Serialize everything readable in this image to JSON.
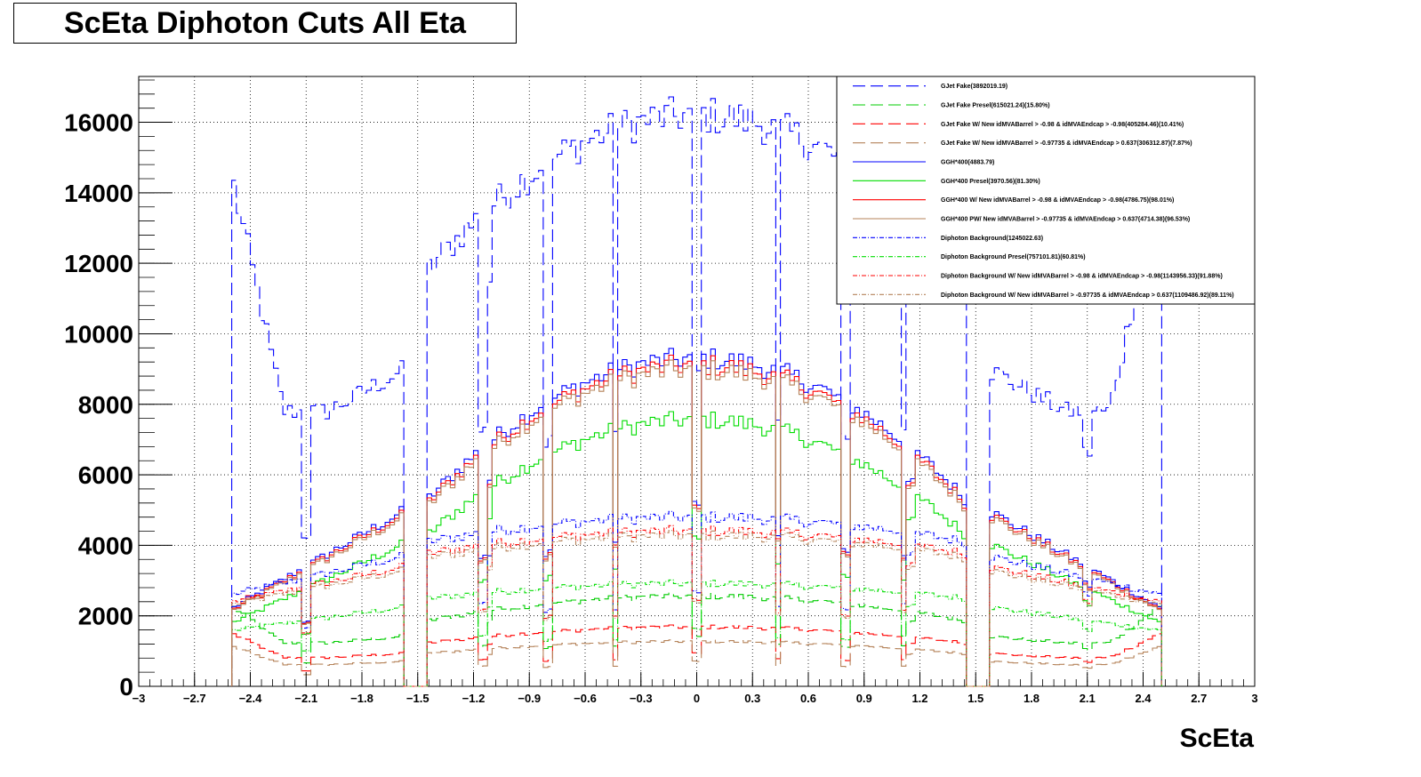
{
  "chart_data": {
    "type": "line",
    "title": "ScEta Diphoton Cuts All Eta",
    "xlabel": "ScEta",
    "ylabel": "",
    "xlim": [
      -3,
      3
    ],
    "ylim": [
      0,
      17300
    ],
    "grid": true,
    "legend_position": "top-right",
    "x_ticks": [
      "−3",
      "−2.7",
      "−2.4",
      "−2.1",
      "−1.8",
      "−1.5",
      "−1.2",
      "−0.9",
      "−0.6",
      "−0.3",
      "0",
      "0.3",
      "0.6",
      "0.9",
      "1.2",
      "1.5",
      "1.8",
      "2.1",
      "2.4",
      "2.7",
      "3"
    ],
    "y_ticks": [
      "0",
      "2000",
      "4000",
      "6000",
      "8000",
      "10000",
      "12000",
      "14000",
      "16000"
    ],
    "bin_width": 0.025,
    "eta_range": [
      -2.5,
      2.5
    ],
    "gap_range": [
      1.4442,
      1.566
    ],
    "dip_positions": [
      -2.1,
      -1.15,
      -0.8,
      -0.43,
      0,
      0.43,
      0.8,
      1.12
    ],
    "series": [
      {
        "name": "GJet Fake(3892019.19)",
        "color": "#0000ff",
        "dash": "long",
        "shape": "gjet",
        "scale": 1.0,
        "center": 16200,
        "edge": 11800,
        "endcap_start": 9000,
        "endcap_mid": 7800,
        "endcap_end": 14500
      },
      {
        "name": "GJet Fake Presel(615021.24)(15.80%)",
        "color": "#00cc00",
        "dash": "long",
        "shape": "gjet",
        "scale": 0.158,
        "center": 16200,
        "edge": 11800,
        "endcap_start": 9000,
        "endcap_mid": 7800,
        "endcap_end": 14500
      },
      {
        "name": "GJet Fake W/ New idMVABarrel > -0.98 & idMVAEndcap > -0.98(405284.46)(10.41%)",
        "color": "#ff0000",
        "dash": "long",
        "shape": "gjet",
        "scale": 0.104,
        "center": 16200,
        "edge": 11800,
        "endcap_start": 9000,
        "endcap_mid": 7800,
        "endcap_end": 14500
      },
      {
        "name": "GJet Fake W/ New idMVABarrel > -0.97735 & idMVAEndcap > 0.637(306312.87)(7.87%)",
        "color": "#b5835a",
        "dash": "long",
        "shape": "gjet",
        "scale": 0.0787,
        "center": 16200,
        "edge": 11800,
        "endcap_start": 9000,
        "endcap_mid": 7800,
        "endcap_end": 14500
      },
      {
        "name": "GGH*400(4883.79)",
        "color": "#0000ff",
        "dash": "solid",
        "shape": "ggh",
        "scale": 1.0,
        "center": 9300,
        "edge": 5300,
        "endcap_start": 5000,
        "endcap_end": 2200
      },
      {
        "name": "GGH*400 Presel(3970.56)(81.30%)",
        "color": "#00dd00",
        "dash": "solid",
        "shape": "ggh",
        "scale": 0.813,
        "center": 9300,
        "edge": 5300,
        "endcap_start": 5000,
        "endcap_end": 2200
      },
      {
        "name": "GGH*400 W/ New idMVABarrel > -0.98 & idMVAEndcap > -0.98(4786.75)(98.01%)",
        "color": "#ff0000",
        "dash": "solid",
        "shape": "ggh",
        "scale": 0.98,
        "center": 9300,
        "edge": 5300,
        "endcap_start": 5000,
        "endcap_end": 2200
      },
      {
        "name": "GGH*400 PW/ New idMVABarrel > -0.97735 & idMVAEndcap > 0.637(4714.38)(96.53%)",
        "color": "#b5835a",
        "dash": "solid",
        "shape": "ggh",
        "scale": 0.9653,
        "center": 9300,
        "edge": 5300,
        "endcap_start": 5000,
        "endcap_end": 2200
      },
      {
        "name": "Diphoton Background(1245022.63)",
        "color": "#0000ff",
        "dash": "dashdot",
        "shape": "diph",
        "scale": 1.0,
        "center": 4800,
        "edge": 4100,
        "endcap_start": 3700,
        "endcap_end": 2600
      },
      {
        "name": "Diphoton Background Presel(757101.81)(60.81%)",
        "color": "#00dd00",
        "dash": "dashdot",
        "shape": "diph",
        "scale": 0.608,
        "center": 4800,
        "edge": 4100,
        "endcap_start": 3700,
        "endcap_end": 2600
      },
      {
        "name": "Diphoton Background W/ New idMVABarrel > -0.98 & idMVAEndcap > -0.98(1143956.33)(91.88%)",
        "color": "#ff0000",
        "dash": "dashdot",
        "shape": "diph",
        "scale": 0.9188,
        "center": 4800,
        "edge": 4100,
        "endcap_start": 3700,
        "endcap_end": 2600
      },
      {
        "name": "Diphoton Background W/ New idMVABarrel > -0.97735 & idMVAEndcap > 0.637(1109486.92)(89.11%)",
        "color": "#b5835a",
        "dash": "dashdot",
        "shape": "diph",
        "scale": 0.8911,
        "center": 4800,
        "edge": 4100,
        "endcap_start": 3700,
        "endcap_end": 2600
      }
    ]
  }
}
